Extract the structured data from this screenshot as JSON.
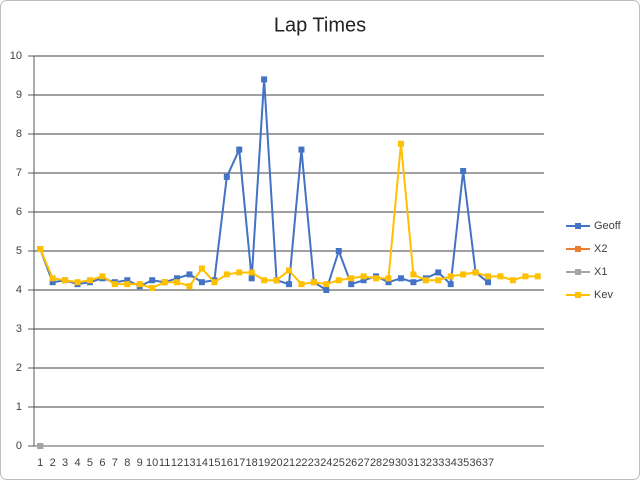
{
  "chart_data": {
    "type": "line",
    "title": "Lap Times",
    "categories": [
      1,
      2,
      3,
      4,
      5,
      6,
      7,
      8,
      9,
      10,
      11,
      12,
      13,
      14,
      15,
      16,
      17,
      18,
      19,
      20,
      21,
      22,
      23,
      24,
      25,
      26,
      27,
      28,
      29,
      30,
      31,
      32,
      33,
      34,
      35,
      36,
      37,
      null,
      null,
      null,
      null
    ],
    "series": [
      {
        "name": "Geoff",
        "color": "#4472c4",
        "values": [
          5.05,
          4.2,
          4.25,
          4.15,
          4.2,
          4.3,
          4.2,
          4.25,
          4.1,
          4.25,
          4.2,
          4.3,
          4.4,
          4.2,
          4.25,
          6.9,
          7.6,
          4.3,
          9.4,
          4.25,
          4.15,
          7.6,
          4.2,
          4.0,
          5.0,
          4.15,
          4.25,
          4.35,
          4.2,
          4.3,
          4.2,
          4.3,
          4.45,
          4.15,
          7.05,
          4.45,
          4.2,
          null,
          null,
          null,
          null
        ]
      },
      {
        "name": "X2",
        "color": "#ed7d31",
        "values": [
          0,
          null,
          null,
          null,
          null,
          null,
          null,
          null,
          null,
          null,
          null,
          null,
          null,
          null,
          null,
          null,
          null,
          null,
          null,
          null,
          null,
          null,
          null,
          null,
          null,
          null,
          null,
          null,
          null,
          null,
          null,
          null,
          null,
          null,
          null,
          null,
          null,
          null,
          null,
          null,
          null
        ]
      },
      {
        "name": "X1",
        "color": "#a5a5a5",
        "values": [
          0,
          null,
          null,
          null,
          null,
          null,
          null,
          null,
          null,
          null,
          null,
          null,
          null,
          null,
          null,
          null,
          null,
          null,
          null,
          null,
          null,
          null,
          null,
          null,
          null,
          null,
          null,
          null,
          null,
          null,
          null,
          null,
          null,
          null,
          null,
          null,
          null,
          null,
          null,
          null,
          null
        ]
      },
      {
        "name": "Kev",
        "color": "#ffc000",
        "values": [
          5.05,
          4.3,
          4.25,
          4.2,
          4.25,
          4.35,
          4.15,
          4.15,
          4.15,
          4.05,
          4.2,
          4.2,
          4.1,
          4.55,
          4.2,
          4.4,
          4.45,
          4.45,
          4.25,
          4.25,
          4.5,
          4.15,
          4.2,
          4.15,
          4.25,
          4.3,
          4.35,
          4.3,
          4.3,
          7.75,
          4.4,
          4.25,
          4.25,
          4.35,
          4.4,
          4.45,
          4.35,
          4.35,
          4.25,
          4.35,
          4.35
        ]
      }
    ],
    "ylim": [
      0,
      10
    ],
    "yticks": [
      0,
      1,
      2,
      3,
      4,
      5,
      6,
      7,
      8,
      9,
      10
    ],
    "grid": true,
    "legend": "right"
  }
}
